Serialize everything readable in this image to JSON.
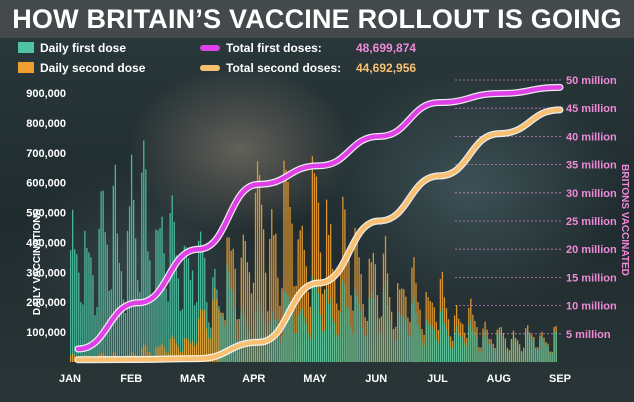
{
  "headline": "HOW BRITAIN’S VACCINE ROLLOUT IS GOING",
  "legend": {
    "daily_first": "Daily first dose",
    "daily_second": "Daily second dose",
    "total_first": "Total first doses:",
    "total_first_value": "48,699,874",
    "total_second": "Total second doses:",
    "total_second_value": "44,692,956"
  },
  "colors": {
    "daily_first": "#4fc4a4",
    "daily_second": "#f0a030",
    "total_first": "#e040e8",
    "total_second": "#f8c070",
    "right_axis": "#f08ad8",
    "grid": "#f08ad8"
  },
  "chart_data": {
    "type": "bar+line",
    "x_ticks": [
      "JAN",
      "FEB",
      "MAR",
      "APR",
      "MAY",
      "JUN",
      "JUL",
      "AUG",
      "SEP"
    ],
    "left_axis": {
      "label": "DAILY VACCINATIONS",
      "ticks": [
        "100,000",
        "200,000",
        "300,000",
        "400,000",
        "500,000",
        "600,000",
        "700,000",
        "800,000",
        "900,000"
      ],
      "range": [
        0,
        900000
      ]
    },
    "right_axis": {
      "label": "BRITONS VACCINATED",
      "ticks": [
        "5 million",
        "10 million",
        "15 million",
        "20 million",
        "25 million",
        "30 million",
        "35 million",
        "40 million",
        "45 million",
        "50 million"
      ],
      "range": [
        0,
        50000000
      ]
    },
    "grid": "right-axis dashed horizontal lines",
    "daily_first_monthly_avg": {
      "months": [
        "JAN",
        "FEB",
        "MAR",
        "APR",
        "MAY",
        "JUN",
        "JUL",
        "AUG"
      ],
      "values": [
        260000,
        400000,
        300000,
        110000,
        160000,
        150000,
        100000,
        60000
      ]
    },
    "daily_second_monthly_avg": {
      "months": [
        "JAN",
        "FEB",
        "MAR",
        "APR",
        "MAY",
        "JUN",
        "JUL",
        "AUG"
      ],
      "values": [
        15000,
        20000,
        70000,
        380000,
        380000,
        230000,
        170000,
        70000
      ]
    },
    "series": [
      {
        "name": "Total first doses",
        "x": [
          "JAN",
          "FEB",
          "MAR",
          "APR",
          "MAY",
          "JUN",
          "JUL",
          "AUG",
          "SEP"
        ],
        "values": [
          2300000,
          10500000,
          20000000,
          31500000,
          34800000,
          40000000,
          46000000,
          47600000,
          48700000
        ]
      },
      {
        "name": "Total second doses",
        "x": [
          "JAN",
          "FEB",
          "MAR",
          "APR",
          "MAY",
          "JUN",
          "JUL",
          "AUG",
          "SEP"
        ],
        "values": [
          400000,
          450000,
          600000,
          3500000,
          14000000,
          25000000,
          33000000,
          40500000,
          44700000
        ]
      }
    ]
  }
}
